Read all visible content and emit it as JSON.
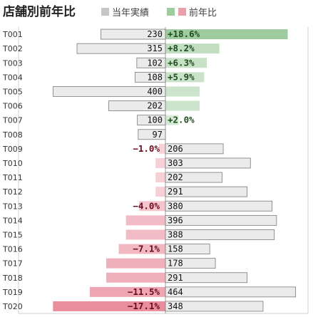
{
  "chart_data": {
    "type": "bar",
    "title": "店舗別前年比",
    "legend": [
      {
        "label": "当年実績",
        "color": "#c6c6c6"
      },
      {
        "label": "前年比",
        "color": "#9fcc9f"
      }
    ],
    "legend_position": "top",
    "categories": [
      "T001",
      "T002",
      "T003",
      "T004",
      "T005",
      "T006",
      "T007",
      "T008",
      "T009",
      "T010",
      "T011",
      "T012",
      "T013",
      "T014",
      "T015",
      "T016",
      "T017",
      "T018",
      "T019",
      "T020"
    ],
    "series": [
      {
        "name": "当年実績",
        "values": [
          230,
          315,
          102,
          108,
          400,
          202,
          100,
          97,
          206,
          303,
          202,
          291,
          380,
          396,
          388,
          158,
          178,
          291,
          464,
          348
        ],
        "labels": [
          "230",
          "315",
          "102",
          "108",
          "400",
          "202",
          "100",
          "97",
          "206",
          "303",
          "202",
          "291",
          "380",
          "396",
          "388",
          "158",
          "178",
          "291",
          "464",
          "348"
        ]
      },
      {
        "name": "前年比",
        "values": [
          18.6,
          8.2,
          6.3,
          5.9,
          5.2,
          5.2,
          2.0,
          0.0,
          -1.0,
          -1.5,
          -1.5,
          -1.5,
          -4.0,
          -6.0,
          -6.0,
          -7.1,
          -9.0,
          -9.0,
          -11.5,
          -17.1
        ],
        "labels": [
          "+18.6%",
          "+8.2%",
          "+6.3%",
          "+5.9%",
          "",
          "",
          "+2.0%",
          "",
          "−1.0%",
          "",
          "",
          "",
          "−4.0%",
          "",
          "",
          "−7.1%",
          "",
          "",
          "−11.5%",
          "−17.1%"
        ]
      }
    ],
    "xlim_actual": [
      0,
      470
    ],
    "xlim_ratio": [
      -18,
      18
    ],
    "colors": {
      "actual_fill": "#ebebeb",
      "actual_stroke": "#7a7a7a",
      "pos": "#9fcc9f",
      "neg": "#e88a9a",
      "pos_text": "#1e4d1e",
      "neg_text": "#6b0a1e"
    }
  }
}
